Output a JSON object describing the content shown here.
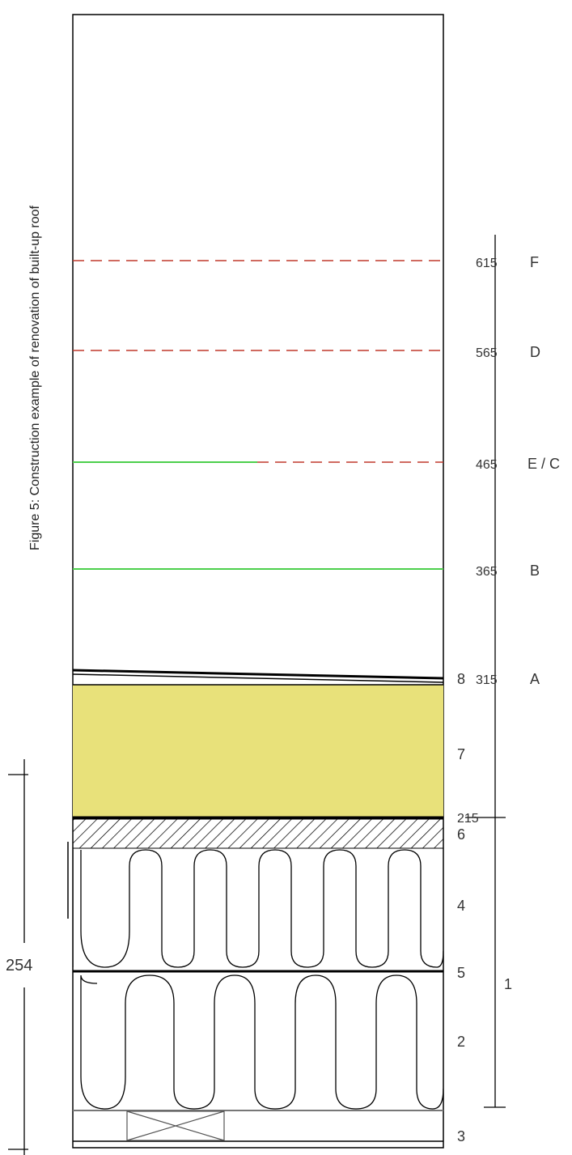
{
  "figure": {
    "title": "Figure 5: Construction example of renovation of built-up roof"
  },
  "dimension": {
    "value": "254"
  },
  "levels": [
    {
      "elevation": "615",
      "label": "F"
    },
    {
      "elevation": "565",
      "label": "D"
    },
    {
      "elevation": "465",
      "label": "E / C"
    },
    {
      "elevation": "365",
      "label": "B"
    },
    {
      "elevation": "315",
      "label": "A"
    },
    {
      "elevation": "215",
      "label": ""
    }
  ],
  "layer_numbers": [
    "8",
    "7",
    "6",
    "4",
    "5",
    "2",
    "3",
    "1"
  ],
  "colors": {
    "insulation_yellow": "#e8e17a",
    "green_line": "#4ccf4c",
    "red_dash": "#c0392b",
    "stroke": "#000000"
  }
}
